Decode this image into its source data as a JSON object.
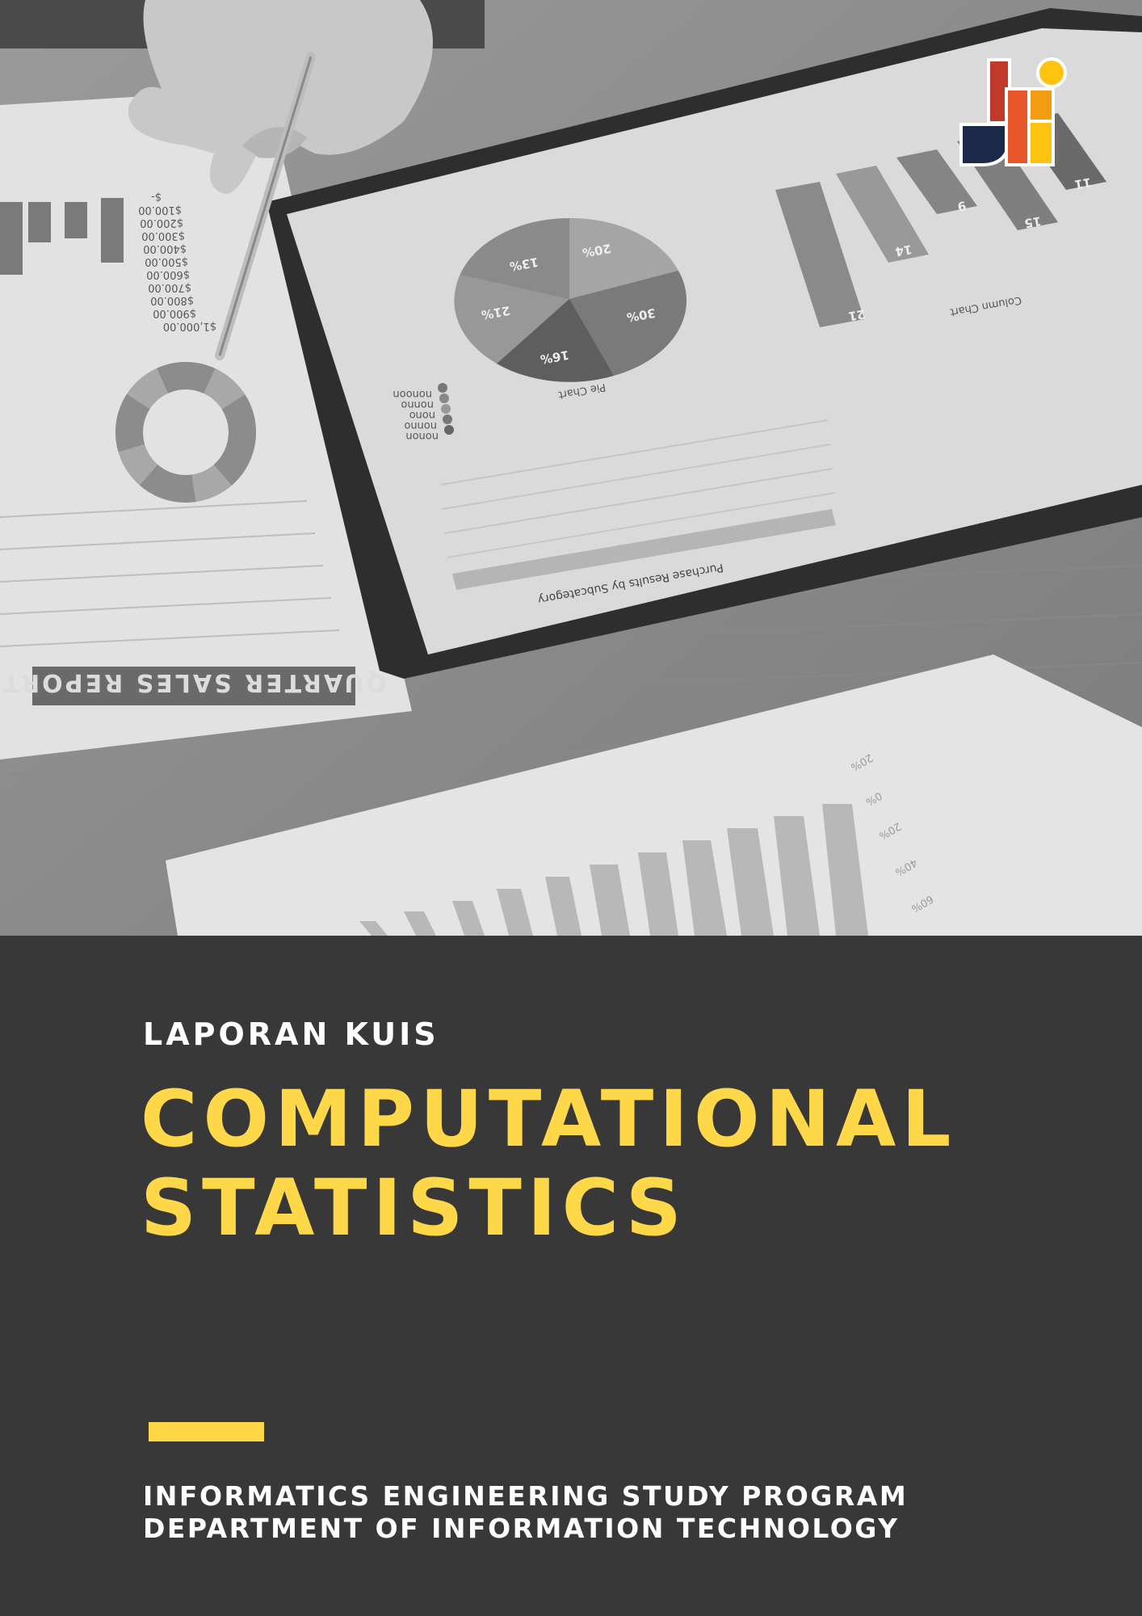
{
  "cover": {
    "subtitle": "LAPORAN KUIS",
    "title_line_1": "COMPUTATIONAL",
    "title_line_2": "STATISTICS",
    "program_line_1": "INFORMATICS ENGINEERING STUDY PROGRAM",
    "program_line_2": "DEPARTMENT OF INFORMATION TECHNOLOGY"
  },
  "photo": {
    "report_title": "QUARTER SALES REPORT",
    "price_ticks": [
      "$-",
      "$100.00",
      "$200.00",
      "$300.00",
      "$400.00",
      "$500.00",
      "$600.00",
      "$700.00",
      "$800.00",
      "$900.00",
      "$1,000.00"
    ],
    "pie_labels": [
      "13%",
      "20%",
      "21%",
      "30%",
      "16%"
    ],
    "pie_title": "Pie Chart",
    "column_values": [
      "21",
      "14",
      "9",
      "15",
      "11"
    ],
    "column_title": "Column Chart",
    "legend_items": [
      "nonon",
      "nonno",
      "nono",
      "nonno",
      "nonoon"
    ],
    "table_header": "Purchase Results by Subcategory",
    "bottom_ticks": [
      "20%",
      "0%",
      "20%",
      "40%",
      "60%"
    ]
  },
  "colors": {
    "background": "#383838",
    "accent": "#ffd84a",
    "text": "#ffffff",
    "logo_red": "#c0392b",
    "logo_orange": "#f39c12",
    "logo_navy": "#1c2a4a"
  },
  "icons": {
    "logo": "jti-logo-icon"
  }
}
